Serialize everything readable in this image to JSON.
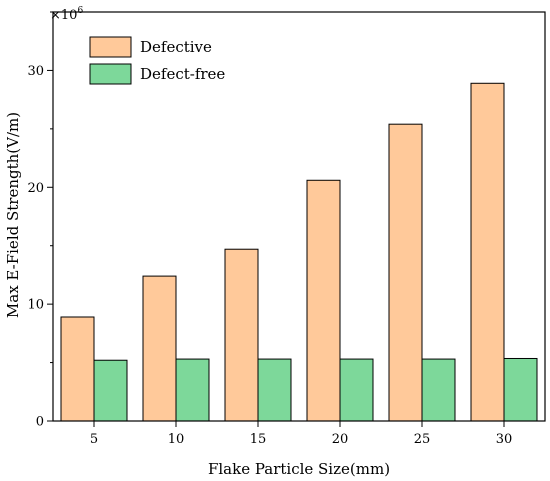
{
  "chart_data": {
    "type": "bar",
    "title": "",
    "xlabel": "Flake Particle Size(mm)",
    "ylabel": "Max E-Field Strength(V/m)",
    "y_multiplier": "×10",
    "y_multiplier_exp": "6",
    "categories": [
      "5",
      "10",
      "15",
      "20",
      "25",
      "30"
    ],
    "series": [
      {
        "name": "Defective",
        "values": [
          8.9,
          12.4,
          14.7,
          20.6,
          25.4,
          28.9
        ],
        "color": "#FFC99A"
      },
      {
        "name": "Defect-free",
        "values": [
          5.2,
          5.3,
          5.3,
          5.3,
          5.3,
          5.35
        ],
        "color": "#7DD89A"
      }
    ],
    "ylim": [
      0,
      35
    ],
    "yticks": [
      0,
      10,
      20,
      30
    ],
    "grid": false,
    "legend_position": "top-left"
  }
}
